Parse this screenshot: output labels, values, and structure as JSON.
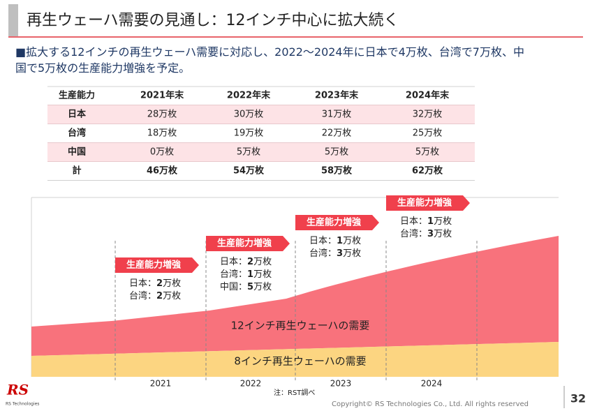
{
  "header": {
    "title": "再生ウェーハ需要の見通し：12インチ中心に拡大続く"
  },
  "bullet": {
    "marker": "■",
    "lines": [
      "拡大する12インチの再生ウェーハ需要に対応し、2022～2024年に日本で4万枚、台湾で7万枚、中",
      "国で5万枚の生産能力増強を予定。"
    ]
  },
  "table": {
    "header": [
      "生産能力",
      "2021年末",
      "2022年末",
      "2023年末",
      "2024年末"
    ],
    "rows": [
      [
        "日本",
        "28万枚",
        "30万枚",
        "31万枚",
        "32万枚"
      ],
      [
        "台湾",
        "18万枚",
        "19万枚",
        "22万枚",
        "25万枚"
      ],
      [
        "中国",
        "0万枚",
        "5万枚",
        "5万枚",
        "5万枚"
      ],
      [
        "計",
        "46万枚",
        "54万枚",
        "58万枚",
        "62万枚"
      ]
    ]
  },
  "chart": {
    "areas": [
      "12インチ再生ウェーハの需要",
      "8インチ再生ウェーハの需要"
    ],
    "years": [
      "2021",
      "2022",
      "2023",
      "2024"
    ],
    "callouts": [
      {
        "label": "生産能力増強",
        "lines": [
          [
            "日本：",
            "2",
            "万枚"
          ],
          [
            "台湾：",
            "2",
            "万枚"
          ]
        ]
      },
      {
        "label": "生産能力増強",
        "lines": [
          [
            "日本：",
            "2",
            "万枚"
          ],
          [
            "台湾：",
            "1",
            "万枚"
          ],
          [
            "中国：",
            "5",
            "万枚"
          ]
        ]
      },
      {
        "label": "生産能力増強",
        "lines": [
          [
            "日本：",
            "1",
            "万枚"
          ],
          [
            "台湾：",
            "3",
            "万枚"
          ]
        ]
      },
      {
        "label": "生産能力増強",
        "lines": [
          [
            "日本：",
            "1",
            "万枚"
          ],
          [
            "台湾：",
            "3",
            "万枚"
          ]
        ]
      }
    ]
  },
  "footnote": "注：RST調べ",
  "logo": {
    "mark": "RS",
    "name": "RS Technologies"
  },
  "copyright": "Copyright© RS Technologies Co., Ltd. All rights reserved",
  "page_number": "32"
}
